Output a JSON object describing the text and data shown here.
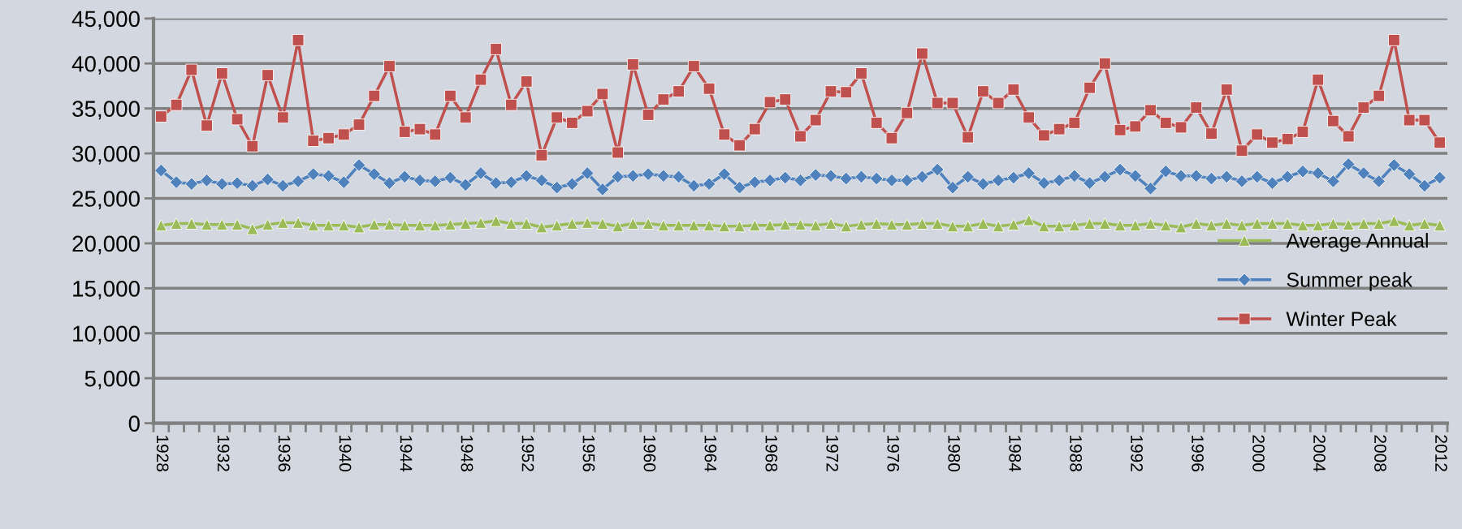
{
  "chart_data": {
    "type": "line",
    "categories": [
      "1928",
      null,
      null,
      null,
      "1932",
      null,
      null,
      null,
      "1936",
      null,
      null,
      null,
      "1940",
      null,
      null,
      null,
      "1944",
      null,
      null,
      null,
      "1948",
      null,
      null,
      null,
      "1952",
      null,
      null,
      null,
      "1956",
      null,
      null,
      null,
      "1960",
      null,
      null,
      null,
      "1964",
      null,
      null,
      null,
      "1968",
      null,
      null,
      null,
      "1972",
      null,
      null,
      null,
      "1976",
      null,
      null,
      null,
      "1980",
      null,
      null,
      null,
      "1984",
      null,
      null,
      null,
      "1988",
      null,
      null,
      null,
      "1992",
      null,
      null,
      null,
      "1996",
      null,
      null,
      null,
      "2000",
      null,
      null,
      null,
      "2004",
      null,
      null,
      null,
      "2008",
      null,
      null,
      null,
      "2012"
    ],
    "series": [
      {
        "name": "Average Annual",
        "color": "#9bbb59",
        "marker": "triangle",
        "values": [
          22000,
          22200,
          22200,
          22100,
          22100,
          22100,
          21600,
          22100,
          22300,
          22300,
          22000,
          22000,
          22000,
          21800,
          22100,
          22100,
          22000,
          22000,
          22000,
          22100,
          22200,
          22300,
          22500,
          22200,
          22200,
          21800,
          22000,
          22200,
          22300,
          22200,
          21900,
          22200,
          22200,
          22000,
          22000,
          22000,
          22000,
          21900,
          21900,
          22000,
          22000,
          22100,
          22100,
          22000,
          22200,
          21900,
          22100,
          22200,
          22100,
          22100,
          22200,
          22200,
          21900,
          21900,
          22200,
          21900,
          22100,
          22600,
          21900,
          21900,
          22000,
          22200,
          22200,
          22000,
          22000,
          22200,
          22000,
          21800,
          22200,
          22000,
          22200,
          22000,
          22200,
          22200,
          22200,
          22000,
          22000,
          22200,
          22100,
          22200,
          22200,
          22500,
          22000,
          22200,
          22000
        ]
      },
      {
        "name": "Summer peak",
        "color": "#4f81bd",
        "marker": "diamond",
        "values": [
          28100,
          26800,
          26600,
          27000,
          26600,
          26700,
          26400,
          27100,
          26400,
          26900,
          27700,
          27500,
          26800,
          28700,
          27700,
          26700,
          27400,
          27000,
          26900,
          27300,
          26500,
          27800,
          26700,
          26800,
          27500,
          27000,
          26200,
          26600,
          27800,
          26000,
          27400,
          27500,
          27700,
          27500,
          27400,
          26400,
          26600,
          27700,
          26200,
          26800,
          27000,
          27300,
          27000,
          27600,
          27500,
          27200,
          27400,
          27200,
          27000,
          27000,
          27400,
          28200,
          26200,
          27400,
          26600,
          27000,
          27300,
          27800,
          26700,
          27000,
          27500,
          26700,
          27400,
          28200,
          27500,
          26100,
          28000,
          27500,
          27500,
          27200,
          27400,
          26900,
          27400,
          26700,
          27400,
          28000,
          27800,
          26900,
          28800,
          27800,
          26900,
          28700,
          27700,
          26400,
          27300
        ]
      },
      {
        "name": "Winter Peak",
        "color": "#c0504d",
        "marker": "square",
        "values": [
          34100,
          35400,
          39300,
          33100,
          38900,
          33800,
          30800,
          38700,
          34000,
          42600,
          31400,
          31700,
          32100,
          33200,
          36400,
          39700,
          32400,
          32700,
          32100,
          36400,
          34000,
          38200,
          41600,
          35400,
          38000,
          29800,
          34000,
          33400,
          34700,
          36600,
          30100,
          39900,
          34300,
          36000,
          36900,
          39700,
          37200,
          32100,
          30900,
          32700,
          35700,
          36000,
          31900,
          33700,
          36900,
          36800,
          38900,
          33400,
          31700,
          34500,
          41100,
          35600,
          35600,
          31800,
          36900,
          35600,
          37100,
          34000,
          32000,
          32700,
          33400,
          37300,
          40000,
          32600,
          33000,
          34800,
          33400,
          32900,
          35100,
          32200,
          37100,
          30300,
          32100,
          31200,
          31600,
          32400,
          38200,
          33600,
          31900,
          35100,
          36400,
          42600,
          33700,
          33700,
          31200
        ]
      }
    ],
    "ylim": [
      0,
      45000
    ],
    "yticks": [
      0,
      {
        "value": 5000,
        "label": "5,000"
      },
      {
        "value": 10000,
        "label": "10,000"
      },
      {
        "value": 15000,
        "label": "15,000"
      },
      {
        "value": 20000,
        "label": "20,000"
      },
      {
        "value": 25000,
        "label": "25,000"
      },
      {
        "value": 30000,
        "label": "30,000"
      },
      {
        "value": 35000,
        "label": "35,000"
      },
      {
        "value": 40000,
        "label": "40,000"
      },
      {
        "value": 45000,
        "label": "45,000"
      }
    ],
    "grid": "y",
    "legend": "right",
    "line_style": "solid"
  }
}
